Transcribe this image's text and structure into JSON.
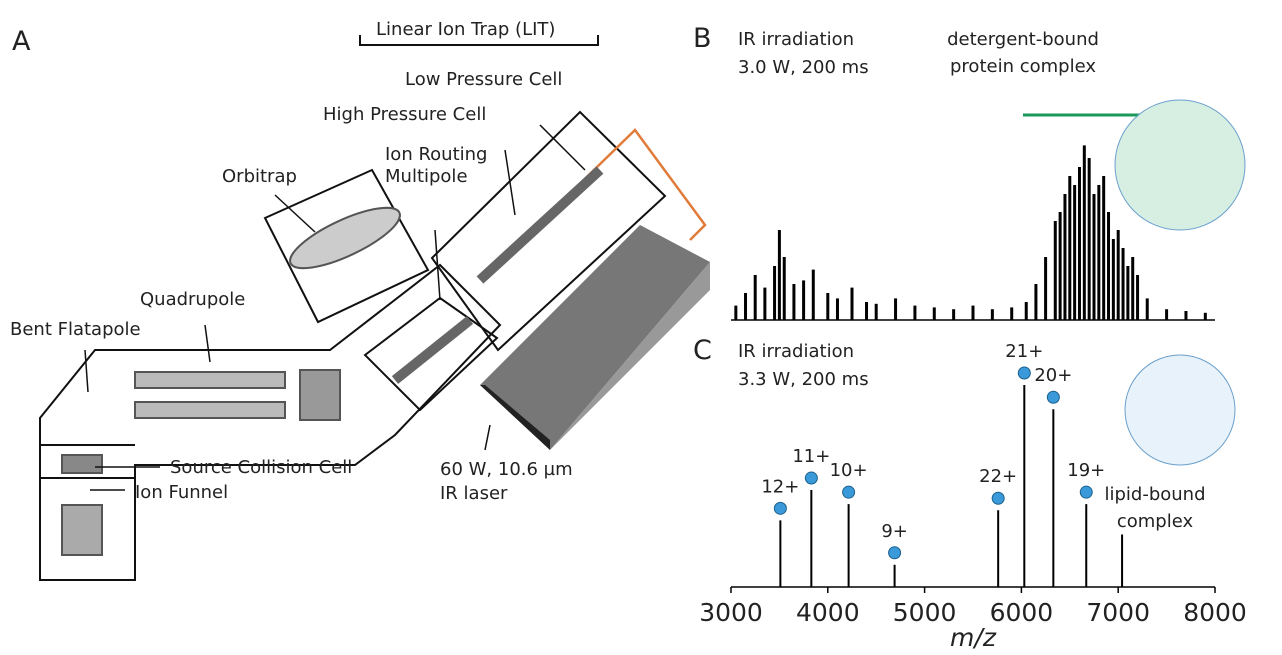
{
  "panel_a": {
    "label": "A",
    "bracket_label": "Linear Ion Trap (LIT)",
    "components": [
      [
        "Low Pressure Cell"
      ],
      [
        "High Pressure Cell"
      ],
      [
        "Ion Routing",
        "Multipole"
      ],
      [
        "Orbitrap"
      ],
      [
        "Quadrupole"
      ],
      [
        "Bent Flatapole"
      ],
      [
        "Source Collision Cell"
      ],
      [
        "Ion Funnel"
      ]
    ],
    "laser_label": [
      "60 W, 10.6 µm",
      "IR laser"
    ]
  },
  "chart_data": [
    {
      "type": "spectrum",
      "panel_label": "B",
      "annotation": [
        "IR irradiation",
        "3.0 W, 200 ms"
      ],
      "highlight_label": [
        "detergent-bound",
        "protein complex"
      ],
      "highlight_color": "#1a9a5a",
      "color": "#000000",
      "x": [
        3050,
        3150,
        3250,
        3350,
        3450,
        3500,
        3550,
        3650,
        3750,
        3850,
        4000,
        4100,
        4250,
        4400,
        4500,
        4700,
        4900,
        5100,
        5300,
        5500,
        5700,
        5900,
        6050,
        6150,
        6250,
        6350,
        6400,
        6450,
        6500,
        6550,
        6600,
        6650,
        6700,
        6750,
        6800,
        6850,
        6900,
        6950,
        7000,
        7050,
        7100,
        7150,
        7200,
        7300,
        7500,
        7700,
        7900
      ],
      "values": [
        8,
        15,
        25,
        18,
        30,
        50,
        35,
        20,
        22,
        28,
        15,
        12,
        18,
        10,
        9,
        12,
        8,
        7,
        6,
        8,
        6,
        7,
        10,
        20,
        35,
        55,
        60,
        70,
        80,
        75,
        85,
        97,
        90,
        70,
        75,
        80,
        60,
        45,
        50,
        40,
        30,
        35,
        25,
        12,
        6,
        5,
        4
      ],
      "xlim": [
        3000,
        8000
      ],
      "ylim": [
        0,
        100
      ]
    },
    {
      "type": "spectrum",
      "panel_label": "C",
      "annotation": [
        "IR irradiation",
        "3.3 W, 200 ms"
      ],
      "highlight_label": [
        "lipid-bound",
        "complex"
      ],
      "highlight_color": "#e07b39",
      "color": "#000000",
      "x": [
        3510,
        3830,
        4215,
        4690,
        5760,
        6030,
        6330,
        6670,
        7040
      ],
      "values": [
        33,
        48,
        41,
        11,
        38,
        100,
        88,
        41,
        26
      ],
      "charge_labels": [
        "12+",
        "11+",
        "10+",
        "9+",
        "22+",
        "21+",
        "20+",
        "19+",
        null
      ],
      "xlim": [
        3000,
        8000
      ],
      "ylim": [
        0,
        100
      ],
      "xticks": [
        3000,
        4000,
        5000,
        6000,
        7000,
        8000
      ],
      "xlabel": "m/z"
    }
  ]
}
